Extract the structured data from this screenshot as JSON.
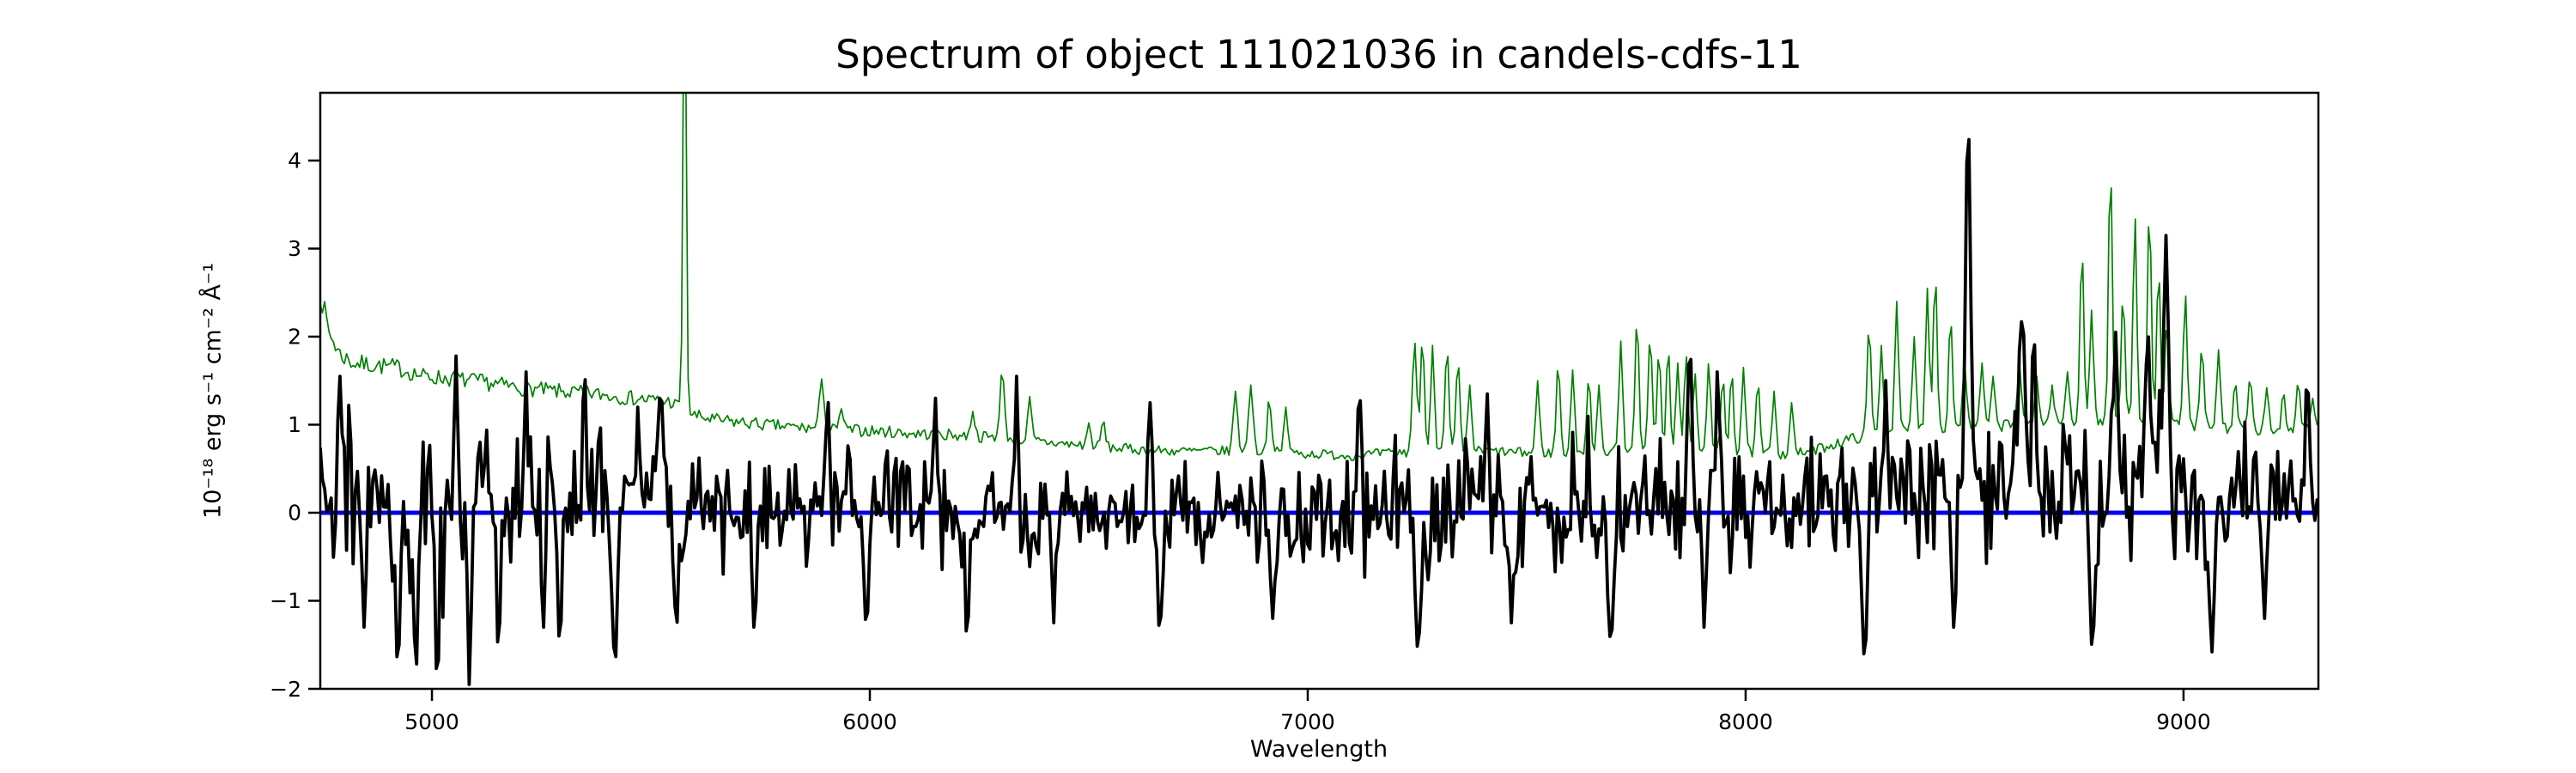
{
  "figure": {
    "background_color": "#ffffff",
    "axis_color": "#000000"
  },
  "chart_data": {
    "type": "line",
    "title": "Spectrum of object 111021036 in candels-cdfs-11",
    "xlabel": "Wavelength",
    "ylabel": "10⁻¹⁸ erg s⁻¹ cm⁻² Å⁻¹",
    "xlim": [
      4745,
      9308
    ],
    "ylim": [
      -2,
      4.77
    ],
    "xticks": [
      5000,
      6000,
      7000,
      8000,
      9000
    ],
    "yticks": [
      -2,
      -1,
      0,
      1,
      2,
      3,
      4
    ],
    "grid": false,
    "legend": null,
    "x_step": 5,
    "series": [
      {
        "name": "zero-line",
        "kind": "hline",
        "y": 0,
        "color": "#0000ee",
        "linewidth": 5
      },
      {
        "name": "sky-error-spectrum",
        "kind": "baseline-with-spikes",
        "color": "#008000",
        "linewidth": 1.7,
        "seed": 7,
        "jitter": 0.045,
        "baseline": [
          [
            4745,
            2.5
          ],
          [
            4765,
            2.05
          ],
          [
            4790,
            1.8
          ],
          [
            4820,
            1.7
          ],
          [
            4860,
            1.68
          ],
          [
            4920,
            1.65
          ],
          [
            4980,
            1.55
          ],
          [
            5050,
            1.52
          ],
          [
            5120,
            1.48
          ],
          [
            5200,
            1.42
          ],
          [
            5280,
            1.38
          ],
          [
            5370,
            1.35
          ],
          [
            5460,
            1.3
          ],
          [
            5545,
            1.26
          ],
          [
            5600,
            1.1
          ],
          [
            5650,
            1.05
          ],
          [
            5720,
            1.02
          ],
          [
            5800,
            0.98
          ],
          [
            5900,
            0.95
          ],
          [
            6000,
            0.93
          ],
          [
            6100,
            0.9
          ],
          [
            6200,
            0.88
          ],
          [
            6300,
            0.85
          ],
          [
            6400,
            0.8
          ],
          [
            6500,
            0.76
          ],
          [
            6600,
            0.72
          ],
          [
            6700,
            0.7
          ],
          [
            6800,
            0.7
          ],
          [
            6900,
            0.7
          ],
          [
            7000,
            0.67
          ],
          [
            7100,
            0.65
          ],
          [
            7200,
            0.68
          ],
          [
            7300,
            0.7
          ],
          [
            7400,
            0.7
          ],
          [
            7500,
            0.68
          ],
          [
            7600,
            0.68
          ],
          [
            7700,
            0.7
          ],
          [
            7800,
            0.72
          ],
          [
            7900,
            0.7
          ],
          [
            8000,
            0.68
          ],
          [
            8100,
            0.66
          ],
          [
            8150,
            0.7
          ],
          [
            8200,
            0.78
          ],
          [
            8250,
            0.85
          ],
          [
            8300,
            0.9
          ],
          [
            8400,
            0.95
          ],
          [
            8500,
            0.98
          ],
          [
            8600,
            1.0
          ],
          [
            8700,
            1.02
          ],
          [
            8800,
            1.05
          ],
          [
            8900,
            1.05
          ],
          [
            9000,
            1.0
          ],
          [
            9100,
            0.95
          ],
          [
            9200,
            0.92
          ],
          [
            9308,
            1.0
          ]
        ],
        "features": [
          [
            5577,
            6.5,
            5
          ],
          [
            5890,
            1.52,
            7
          ],
          [
            5935,
            1.18,
            6
          ],
          [
            6235,
            1.15,
            6
          ],
          [
            6302,
            1.62,
            7
          ],
          [
            6365,
            1.32,
            6
          ],
          [
            6500,
            1.02,
            6
          ],
          [
            6533,
            1.06,
            6
          ],
          [
            6835,
            1.38,
            7
          ],
          [
            6870,
            1.45,
            7
          ],
          [
            6912,
            1.32,
            6
          ],
          [
            6950,
            1.2,
            6
          ],
          [
            7244,
            1.95,
            7
          ],
          [
            7262,
            2.02,
            6
          ],
          [
            7285,
            1.9,
            6
          ],
          [
            7318,
            1.9,
            6
          ],
          [
            7343,
            1.75,
            6
          ],
          [
            7370,
            1.45,
            6
          ],
          [
            7525,
            1.5,
            6
          ],
          [
            7572,
            1.72,
            6
          ],
          [
            7605,
            1.62,
            6
          ],
          [
            7642,
            1.55,
            6
          ],
          [
            7665,
            1.45,
            6
          ],
          [
            7715,
            1.95,
            6
          ],
          [
            7752,
            2.25,
            6
          ],
          [
            7782,
            2.05,
            6
          ],
          [
            7802,
            1.85,
            6
          ],
          [
            7823,
            1.9,
            6
          ],
          [
            7845,
            1.7,
            6
          ],
          [
            7864,
            1.8,
            6
          ],
          [
            7884,
            1.6,
            6
          ],
          [
            7916,
            1.72,
            6
          ],
          [
            7948,
            1.55,
            6
          ],
          [
            7968,
            1.62,
            6
          ],
          [
            7995,
            1.65,
            6
          ],
          [
            8028,
            1.5,
            6
          ],
          [
            8065,
            1.38,
            6
          ],
          [
            8105,
            1.25,
            6
          ],
          [
            8282,
            2.15,
            6
          ],
          [
            8310,
            1.9,
            6
          ],
          [
            8345,
            2.4,
            6
          ],
          [
            8385,
            2.0,
            6
          ],
          [
            8415,
            2.55,
            6
          ],
          [
            8433,
            2.75,
            6
          ],
          [
            8468,
            2.25,
            6
          ],
          [
            8500,
            1.75,
            6
          ],
          [
            8540,
            1.7,
            6
          ],
          [
            8565,
            1.55,
            6
          ],
          [
            8625,
            1.75,
            6
          ],
          [
            8665,
            1.55,
            6
          ],
          [
            8700,
            1.45,
            6
          ],
          [
            8735,
            1.6,
            6
          ],
          [
            8768,
            3.05,
            6
          ],
          [
            8790,
            2.3,
            6
          ],
          [
            8833,
            4.0,
            6
          ],
          [
            8862,
            2.5,
            6
          ],
          [
            8889,
            3.4,
            6
          ],
          [
            8922,
            3.5,
            6
          ],
          [
            8943,
            2.8,
            6
          ],
          [
            8962,
            2.2,
            6
          ],
          [
            9004,
            2.5,
            6
          ],
          [
            9042,
            1.9,
            6
          ],
          [
            9080,
            1.85,
            6
          ],
          [
            9118,
            1.5,
            6
          ],
          [
            9152,
            1.55,
            6
          ],
          [
            9190,
            1.42,
            6
          ],
          [
            9228,
            1.38,
            6
          ],
          [
            9262,
            1.5,
            6
          ],
          [
            9295,
            1.3,
            6
          ]
        ]
      },
      {
        "name": "object-flux-spectrum",
        "kind": "noise",
        "color": "#000000",
        "linewidth": 3.8,
        "seed": 42,
        "mean": [
          [
            4745,
            0.2
          ],
          [
            4900,
            0.15
          ],
          [
            5100,
            0.15
          ],
          [
            5400,
            0.1
          ],
          [
            5700,
            0.1
          ],
          [
            6000,
            0.05
          ],
          [
            6300,
            0.05
          ],
          [
            6700,
            0.0
          ],
          [
            7000,
            0.0
          ],
          [
            7300,
            0.0
          ],
          [
            7600,
            0.05
          ],
          [
            7900,
            0.1
          ],
          [
            8200,
            0.1
          ],
          [
            8500,
            0.3
          ],
          [
            8700,
            0.35
          ],
          [
            8900,
            0.3
          ],
          [
            9100,
            0.1
          ],
          [
            9308,
            0.2
          ]
        ],
        "amplitude": [
          [
            4745,
            0.55
          ],
          [
            4900,
            0.6
          ],
          [
            5100,
            0.62
          ],
          [
            5300,
            0.55
          ],
          [
            5600,
            0.5
          ],
          [
            5900,
            0.45
          ],
          [
            6200,
            0.45
          ],
          [
            6500,
            0.4
          ],
          [
            6800,
            0.4
          ],
          [
            7100,
            0.42
          ],
          [
            7300,
            0.5
          ],
          [
            7500,
            0.45
          ],
          [
            7700,
            0.5
          ],
          [
            7900,
            0.48
          ],
          [
            8100,
            0.45
          ],
          [
            8300,
            0.55
          ],
          [
            8500,
            0.55
          ],
          [
            8700,
            0.6
          ],
          [
            8900,
            0.65
          ],
          [
            9100,
            0.55
          ],
          [
            9308,
            0.5
          ]
        ],
        "features": [
          [
            4747,
            0.8,
            4
          ],
          [
            4790,
            1.55,
            7
          ],
          [
            4845,
            -1.3,
            7
          ],
          [
            4922,
            -1.72,
            8
          ],
          [
            4963,
            -1.88,
            7
          ],
          [
            5012,
            -1.92,
            7
          ],
          [
            5055,
            1.78,
            6
          ],
          [
            5085,
            -1.95,
            6
          ],
          [
            5152,
            -1.62,
            7
          ],
          [
            5215,
            1.6,
            6
          ],
          [
            5255,
            -1.3,
            6
          ],
          [
            5292,
            -1.52,
            7
          ],
          [
            5348,
            1.65,
            6
          ],
          [
            5418,
            -1.78,
            8
          ],
          [
            5470,
            1.2,
            6
          ],
          [
            5520,
            1.3,
            6
          ],
          [
            5558,
            -1.38,
            7
          ],
          [
            5735,
            -1.3,
            7
          ],
          [
            5905,
            1.25,
            6
          ],
          [
            5992,
            -1.35,
            7
          ],
          [
            6150,
            1.3,
            6
          ],
          [
            6222,
            -1.45,
            7
          ],
          [
            6335,
            1.55,
            6
          ],
          [
            6420,
            -1.25,
            7
          ],
          [
            6640,
            1.25,
            6
          ],
          [
            6662,
            -1.38,
            7
          ],
          [
            6920,
            -1.2,
            7
          ],
          [
            7118,
            1.45,
            6
          ],
          [
            7252,
            -1.62,
            8
          ],
          [
            7410,
            1.35,
            6
          ],
          [
            7465,
            -1.25,
            7
          ],
          [
            7692,
            -1.52,
            8
          ],
          [
            7872,
            1.85,
            7
          ],
          [
            7905,
            -1.3,
            6
          ],
          [
            7935,
            1.6,
            6
          ],
          [
            8272,
            -1.68,
            8
          ],
          [
            8320,
            1.5,
            6
          ],
          [
            8475,
            -1.3,
            6
          ],
          [
            8508,
            4.5,
            8
          ],
          [
            8632,
            2.35,
            7
          ],
          [
            8658,
            2.1,
            6
          ],
          [
            8792,
            -1.62,
            8
          ],
          [
            8845,
            2.05,
            7
          ],
          [
            8918,
            2.2,
            7
          ],
          [
            8960,
            3.15,
            8
          ],
          [
            9065,
            -1.58,
            8
          ],
          [
            9185,
            -1.2,
            7
          ],
          [
            9283,
            1.5,
            7
          ]
        ]
      }
    ]
  }
}
